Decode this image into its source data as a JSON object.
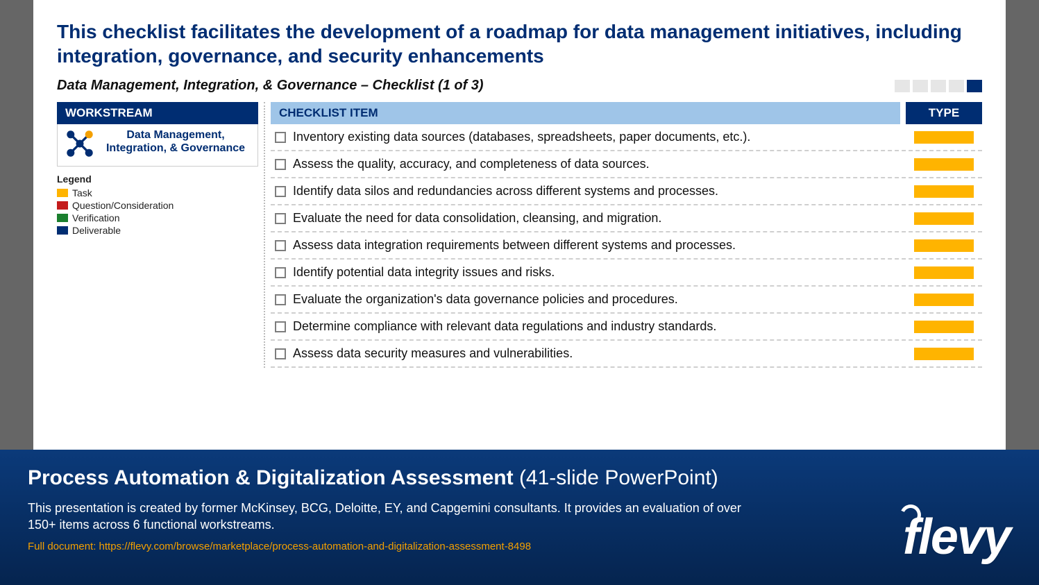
{
  "colors": {
    "brand_navy": "#002d72",
    "header_blue": "#9fc5e8",
    "task": "#ffb400",
    "question": "#c41b1b",
    "verification": "#1a7f2e",
    "deliverable": "#002d72",
    "progress_inactive": "#e6e6e6",
    "banner_top": "#0b3a7a",
    "banner_bottom": "#05244f",
    "link_orange": "#f4a000"
  },
  "slide": {
    "title": "This checklist facilitates the development of a roadmap for data management initiatives, including integration, governance, and security enhancements",
    "subtitle": "Data Management, Integration, & Governance – Checklist (1 of 3)",
    "progress": {
      "total": 5,
      "active_index": 4
    },
    "workstream": {
      "header": "WORKSTREAM",
      "label": "Data Management, Integration, & Governance"
    },
    "legend": {
      "title": "Legend",
      "items": [
        {
          "label": "Task",
          "color_key": "task"
        },
        {
          "label": "Question/Consideration",
          "color_key": "question"
        },
        {
          "label": "Verification",
          "color_key": "verification"
        },
        {
          "label": "Deliverable",
          "color_key": "deliverable"
        }
      ]
    },
    "table": {
      "item_header": "CHECKLIST ITEM",
      "type_header": "TYPE",
      "rows": [
        {
          "text": "Inventory existing data sources (databases, spreadsheets, paper documents, etc.).",
          "type": "task"
        },
        {
          "text": "Assess the quality, accuracy, and completeness of data sources.",
          "type": "task"
        },
        {
          "text": "Identify data silos and redundancies across different systems and processes.",
          "type": "task"
        },
        {
          "text": "Evaluate the need for data consolidation, cleansing, and migration.",
          "type": "task"
        },
        {
          "text": "Assess data integration requirements between different systems and processes.",
          "type": "task"
        },
        {
          "text": "Identify potential data integrity issues and risks.",
          "type": "task"
        },
        {
          "text": "Evaluate the organization's data governance policies and procedures.",
          "type": "task"
        },
        {
          "text": "Determine compliance with relevant data regulations and industry standards.",
          "type": "task"
        },
        {
          "text": "Assess data security measures and vulnerabilities.",
          "type": "task"
        }
      ]
    }
  },
  "banner": {
    "title_bold": "Process Automation & Digitalization Assessment",
    "title_thin": " (41-slide PowerPoint)",
    "description": "This presentation is created by former McKinsey, BCG, Deloitte, EY, and Capgemini consultants. It provides an evaluation of over 150+ items across 6 functional workstreams.",
    "link_label": "Full document: https://flevy.com/browse/marketplace/process-automation-and-digitalization-assessment-8498",
    "logo_text": "flevy"
  }
}
